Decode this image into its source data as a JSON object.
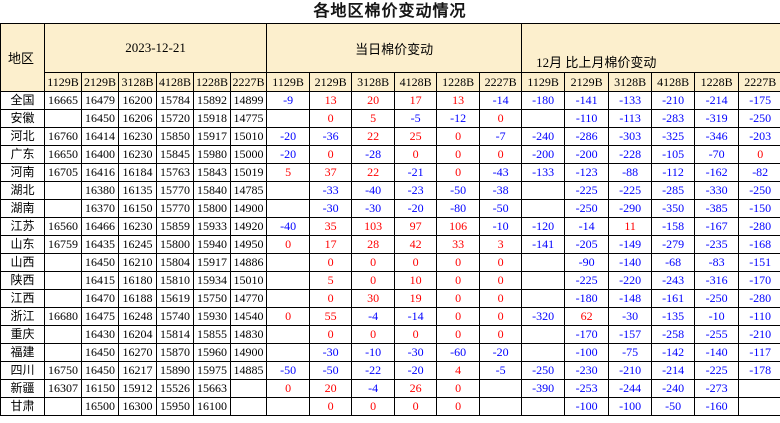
{
  "title": "各地区棉价变动情况",
  "colors": {
    "header_bg": "#FCEFCD",
    "positive_value": "#FF0000",
    "negative_value": "#0000FF",
    "border": "#000000",
    "title_text": "#151515"
  },
  "table": {
    "region_header": "地区",
    "groups": [
      {
        "label": "2023-12-21",
        "subcols": [
          "1129B",
          "2129B",
          "3128B",
          "4128B",
          "1228B",
          "2227B"
        ]
      },
      {
        "label": "当日棉价变动",
        "subcols": [
          "1129B",
          "2129B",
          "3128B",
          "4128B",
          "1228B",
          "2227B"
        ]
      },
      {
        "label": "12月 比上月棉价变动",
        "subcols": [
          "1129B",
          "2129B",
          "3128B",
          "4128B",
          "1228B",
          "2227B"
        ]
      }
    ],
    "rows": [
      {
        "region": "全国",
        "prices": [
          "16665",
          "16479",
          "16200",
          "15784",
          "15892",
          "14899"
        ],
        "daily": [
          "-9",
          "13",
          "20",
          "17",
          "13",
          "-14"
        ],
        "monthly": [
          "-180",
          "-141",
          "-133",
          "-210",
          "-214",
          "-175"
        ]
      },
      {
        "region": "安徽",
        "prices": [
          "",
          "16450",
          "16206",
          "15720",
          "15918",
          "14775"
        ],
        "daily": [
          "",
          "0",
          "5",
          "-5",
          "-12",
          "0"
        ],
        "monthly": [
          "",
          "-110",
          "-113",
          "-283",
          "-319",
          "-250"
        ]
      },
      {
        "region": "河北",
        "prices": [
          "16760",
          "16414",
          "16230",
          "15850",
          "15917",
          "15010"
        ],
        "daily": [
          "-20",
          "-36",
          "22",
          "25",
          "0",
          "-7"
        ],
        "monthly": [
          "-240",
          "-286",
          "-303",
          "-325",
          "-346",
          "-203"
        ]
      },
      {
        "region": "广东",
        "prices": [
          "16650",
          "16400",
          "16230",
          "15845",
          "15980",
          "15000"
        ],
        "daily": [
          "-20",
          "0",
          "-28",
          "0",
          "0",
          "0"
        ],
        "monthly": [
          "-200",
          "-200",
          "-228",
          "-105",
          "-70",
          "0"
        ]
      },
      {
        "region": "河南",
        "prices": [
          "16705",
          "16416",
          "16184",
          "15763",
          "15843",
          "15019"
        ],
        "daily": [
          "5",
          "37",
          "22",
          "-21",
          "0",
          "-43"
        ],
        "monthly": [
          "-133",
          "-123",
          "-88",
          "-112",
          "-162",
          "-82"
        ]
      },
      {
        "region": "湖北",
        "prices": [
          "",
          "16380",
          "16135",
          "15770",
          "15840",
          "14785"
        ],
        "daily": [
          "",
          "-33",
          "-40",
          "-23",
          "-50",
          "-38"
        ],
        "monthly": [
          "",
          "-225",
          "-225",
          "-285",
          "-330",
          "-250"
        ]
      },
      {
        "region": "湖南",
        "prices": [
          "",
          "16370",
          "16150",
          "15770",
          "15800",
          "14900"
        ],
        "daily": [
          "",
          "-30",
          "-30",
          "-20",
          "-80",
          "-50"
        ],
        "monthly": [
          "",
          "-250",
          "-290",
          "-350",
          "-385",
          "-150"
        ]
      },
      {
        "region": "江苏",
        "prices": [
          "16560",
          "16466",
          "16230",
          "15859",
          "15933",
          "14920"
        ],
        "daily": [
          "-40",
          "35",
          "103",
          "97",
          "106",
          "-10"
        ],
        "monthly": [
          "-120",
          "-14",
          "11",
          "-158",
          "-167",
          "-280"
        ]
      },
      {
        "region": "山东",
        "prices": [
          "16759",
          "16435",
          "16245",
          "15800",
          "15940",
          "14950"
        ],
        "daily": [
          "0",
          "17",
          "28",
          "42",
          "33",
          "3"
        ],
        "monthly": [
          "-141",
          "-205",
          "-149",
          "-279",
          "-235",
          "-168"
        ]
      },
      {
        "region": "山西",
        "prices": [
          "",
          "16450",
          "16210",
          "15804",
          "15917",
          "14886"
        ],
        "daily": [
          "",
          "0",
          "0",
          "0",
          "0",
          "0"
        ],
        "monthly": [
          "",
          "-90",
          "-140",
          "-68",
          "-83",
          "-151"
        ]
      },
      {
        "region": "陕西",
        "prices": [
          "",
          "16415",
          "16180",
          "15810",
          "15934",
          "15010"
        ],
        "daily": [
          "",
          "5",
          "0",
          "10",
          "0",
          "0"
        ],
        "monthly": [
          "",
          "-225",
          "-220",
          "-243",
          "-316",
          "-170"
        ]
      },
      {
        "region": "江西",
        "prices": [
          "",
          "16470",
          "16188",
          "15619",
          "15750",
          "14770"
        ],
        "daily": [
          "",
          "0",
          "30",
          "19",
          "0",
          "0"
        ],
        "monthly": [
          "",
          "-180",
          "-148",
          "-161",
          "-250",
          "-280"
        ]
      },
      {
        "region": "浙江",
        "prices": [
          "16680",
          "16475",
          "16248",
          "15740",
          "15930",
          "14540"
        ],
        "daily": [
          "0",
          "55",
          "-4",
          "-14",
          "0",
          "0"
        ],
        "monthly": [
          "-320",
          "62",
          "-30",
          "-135",
          "-10",
          "-110"
        ]
      },
      {
        "region": "重庆",
        "prices": [
          "",
          "16430",
          "16204",
          "15814",
          "15855",
          "14830"
        ],
        "daily": [
          "",
          "0",
          "0",
          "0",
          "0",
          "0"
        ],
        "monthly": [
          "",
          "-170",
          "-157",
          "-258",
          "-255",
          "-210"
        ]
      },
      {
        "region": "福建",
        "prices": [
          "",
          "16450",
          "16270",
          "15870",
          "15960",
          "14900"
        ],
        "daily": [
          "",
          "-30",
          "-10",
          "-30",
          "-60",
          "-20"
        ],
        "monthly": [
          "",
          "-100",
          "-75",
          "-142",
          "-140",
          "-117"
        ]
      },
      {
        "region": "四川",
        "prices": [
          "16750",
          "16450",
          "16217",
          "15890",
          "15975",
          "14885"
        ],
        "daily": [
          "-50",
          "-50",
          "-22",
          "-20",
          "4",
          "-5"
        ],
        "monthly": [
          "-250",
          "-230",
          "-210",
          "-214",
          "-225",
          "-178"
        ]
      },
      {
        "region": "新疆",
        "prices": [
          "16307",
          "16150",
          "15912",
          "15526",
          "15663",
          ""
        ],
        "daily": [
          "0",
          "20",
          "-4",
          "26",
          "0",
          ""
        ],
        "monthly": [
          "-390",
          "-253",
          "-244",
          "-240",
          "-273",
          ""
        ]
      },
      {
        "region": "甘肃",
        "prices": [
          "",
          "16500",
          "16300",
          "15950",
          "16100",
          ""
        ],
        "daily": [
          "",
          "0",
          "0",
          "0",
          "0",
          ""
        ],
        "monthly": [
          "",
          "-100",
          "-100",
          "-50",
          "-160",
          ""
        ]
      }
    ]
  }
}
